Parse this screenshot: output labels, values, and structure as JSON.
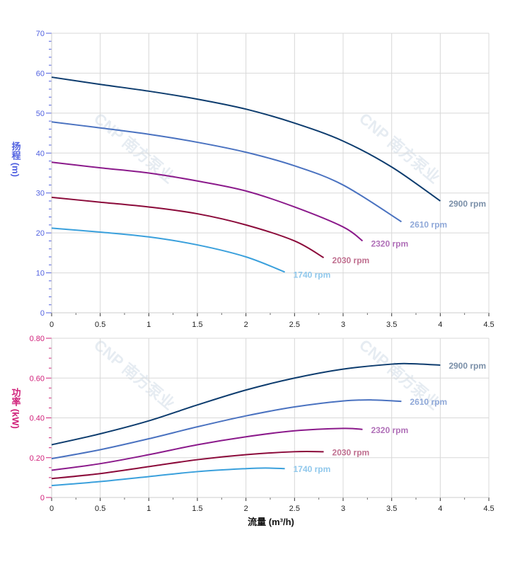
{
  "watermark": "CNP 南方泵业",
  "chart_data": [
    {
      "type": "line",
      "ylabel": "扬程 (m)",
      "xlabel": "",
      "xlim": [
        0,
        4.5
      ],
      "ylim": [
        0,
        70
      ],
      "xticks": [
        "0",
        "0.5",
        "1",
        "1.5",
        "2",
        "2.5",
        "3",
        "3.5",
        "4",
        "4.5"
      ],
      "yticks": [
        "0",
        "10",
        "20",
        "30",
        "40",
        "50",
        "60",
        "70"
      ],
      "grid": true,
      "axis_color": "#5060e0",
      "series": [
        {
          "name": "2900 rpm",
          "color": "#0d3c6e",
          "label_color": "#7a8fa8",
          "x": [
            0,
            0.5,
            1,
            1.5,
            2,
            2.5,
            3,
            3.5,
            4
          ],
          "y": [
            59,
            57.2,
            55.5,
            53.5,
            51,
            47.5,
            43,
            36.5,
            28
          ]
        },
        {
          "name": "2610 rpm",
          "color": "#4a72c0",
          "label_color": "#8fa8d8",
          "x": [
            0,
            0.5,
            1,
            1.5,
            2,
            2.5,
            3,
            3.6
          ],
          "y": [
            47.8,
            46.3,
            44.7,
            42.7,
            40.2,
            36.8,
            32,
            22.8
          ]
        },
        {
          "name": "2320 rpm",
          "color": "#8b1a8b",
          "label_color": "#b070b8",
          "x": [
            0,
            0.5,
            1,
            1.5,
            2,
            2.5,
            3,
            3.2
          ],
          "y": [
            37.7,
            36.3,
            35,
            33,
            30.5,
            26.5,
            21.5,
            18
          ]
        },
        {
          "name": "2030 rpm",
          "color": "#8b0a3a",
          "label_color": "#c07090",
          "x": [
            0,
            0.5,
            1,
            1.5,
            2,
            2.5,
            2.8
          ],
          "y": [
            28.9,
            27.7,
            26.5,
            24.8,
            22,
            18,
            13.8
          ]
        },
        {
          "name": "1740 rpm",
          "color": "#3aa0dc",
          "label_color": "#90c8ec",
          "x": [
            0,
            0.5,
            1,
            1.5,
            2,
            2.4
          ],
          "y": [
            21.2,
            20.2,
            19,
            17,
            14,
            10.2
          ]
        }
      ]
    },
    {
      "type": "line",
      "ylabel": "功率 (kW)",
      "xlabel": "流量 (m³/h)",
      "xlim": [
        0,
        4.5
      ],
      "ylim": [
        0,
        0.8
      ],
      "xticks": [
        "0",
        "0.5",
        "1",
        "1.5",
        "2",
        "2.5",
        "3",
        "3.5",
        "4",
        "4.5"
      ],
      "yticks": [
        "0",
        "0.20",
        "0.40",
        "0.60",
        "0.80"
      ],
      "grid": true,
      "axis_color": "#d0207a",
      "series": [
        {
          "name": "2900 rpm",
          "color": "#0d3c6e",
          "label_color": "#7a8fa8",
          "x": [
            0,
            0.5,
            1,
            1.5,
            2,
            2.5,
            3,
            3.5,
            3.7,
            4
          ],
          "y": [
            0.265,
            0.32,
            0.385,
            0.465,
            0.54,
            0.6,
            0.645,
            0.67,
            0.672,
            0.665
          ]
        },
        {
          "name": "2610 rpm",
          "color": "#4a72c0",
          "label_color": "#8fa8d8",
          "x": [
            0,
            0.5,
            1,
            1.5,
            2,
            2.5,
            3,
            3.3,
            3.6
          ],
          "y": [
            0.195,
            0.24,
            0.295,
            0.355,
            0.41,
            0.455,
            0.485,
            0.49,
            0.483
          ]
        },
        {
          "name": "2320 rpm",
          "color": "#8b1a8b",
          "label_color": "#b070b8",
          "x": [
            0,
            0.5,
            1,
            1.5,
            2,
            2.5,
            3,
            3.2
          ],
          "y": [
            0.137,
            0.17,
            0.215,
            0.265,
            0.305,
            0.335,
            0.347,
            0.342
          ]
        },
        {
          "name": "2030 rpm",
          "color": "#8b0a3a",
          "label_color": "#c07090",
          "x": [
            0,
            0.5,
            1,
            1.5,
            2,
            2.5,
            2.8
          ],
          "y": [
            0.095,
            0.12,
            0.155,
            0.19,
            0.215,
            0.23,
            0.23
          ]
        },
        {
          "name": "1740 rpm",
          "color": "#3aa0dc",
          "label_color": "#90c8ec",
          "x": [
            0,
            0.5,
            1,
            1.5,
            2,
            2.2,
            2.4
          ],
          "y": [
            0.06,
            0.08,
            0.105,
            0.13,
            0.145,
            0.148,
            0.145
          ]
        }
      ]
    }
  ]
}
